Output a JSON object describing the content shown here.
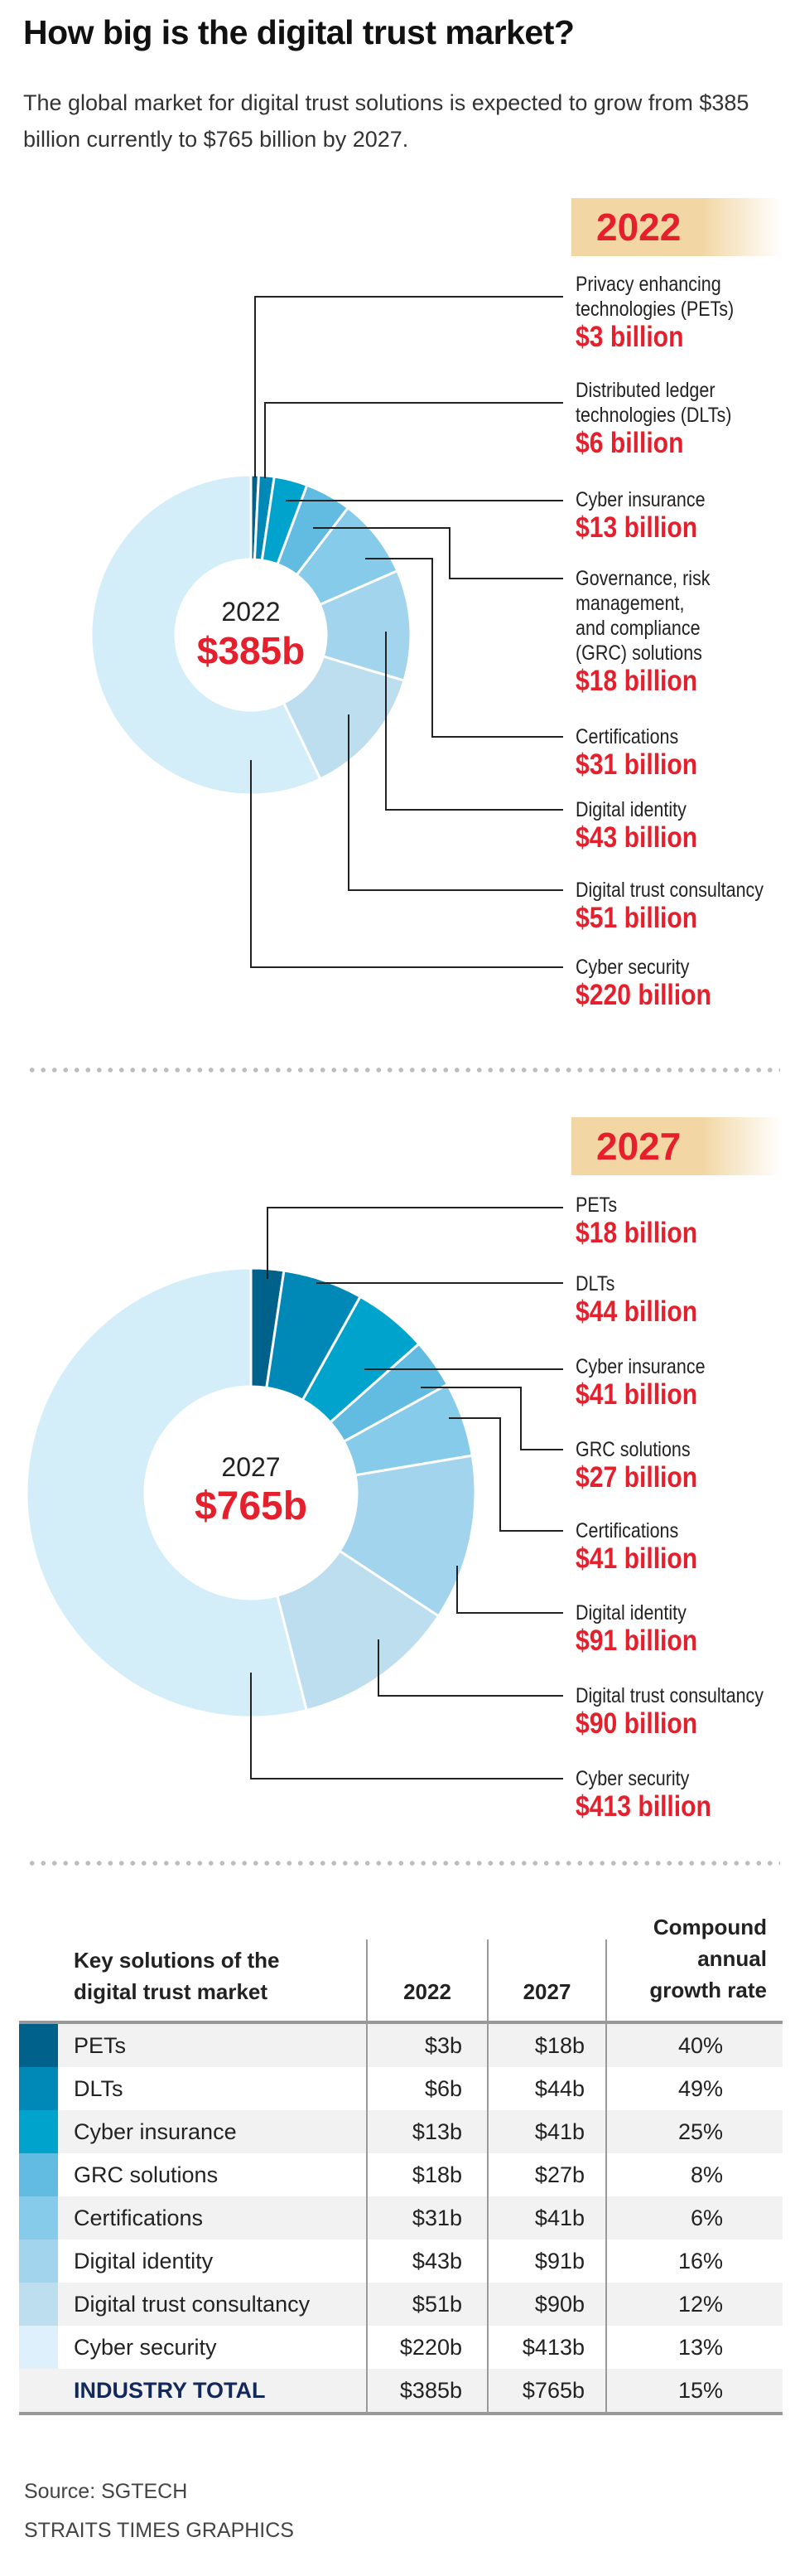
{
  "header": {
    "title": "How big is the digital trust market?",
    "subtitle": "The global market for digital trust solutions is expected to grow from $385 billion currently to $765 billion by 2027."
  },
  "colors": {
    "accent_red": "#e51f2b",
    "badge": "#f2d7a4",
    "total_label": "#13295b",
    "slices": [
      "#00628a",
      "#0088b7",
      "#00a3cc",
      "#62bbe0",
      "#86cbea",
      "#a3d4ee",
      "#bcdeee",
      "#d3edf9"
    ]
  },
  "chart_data": [
    {
      "type": "pie",
      "variant": "donut",
      "badge": "2022",
      "center_year": "2022",
      "center_total": "$385b",
      "categories": [
        "PETs",
        "DLTs",
        "Cyber insurance",
        "GRC solutions",
        "Certifications",
        "Digital identity",
        "Digital trust consultancy",
        "Cyber security"
      ],
      "values": [
        3,
        6,
        13,
        18,
        31,
        43,
        51,
        220
      ],
      "unit": "billion USD",
      "labels": [
        {
          "name": "Privacy enhancing\ntechnologies (PETs)",
          "value": "$3 billion"
        },
        {
          "name": "Distributed ledger\ntechnologies (DLTs)",
          "value": "$6 billion"
        },
        {
          "name": "Cyber insurance",
          "value": "$13 billion"
        },
        {
          "name": "Governance, risk\nmanagement,\nand compliance\n(GRC) solutions",
          "value": "$18 billion"
        },
        {
          "name": "Certifications",
          "value": "$31 billion"
        },
        {
          "name": "Digital identity",
          "value": "$43 billion"
        },
        {
          "name": "Digital trust consultancy",
          "value": "$51 billion"
        },
        {
          "name": "Cyber security",
          "value": "$220 billion"
        }
      ]
    },
    {
      "type": "pie",
      "variant": "donut",
      "badge": "2027",
      "center_year": "2027",
      "center_total": "$765b",
      "categories": [
        "PETs",
        "DLTs",
        "Cyber insurance",
        "GRC solutions",
        "Certifications",
        "Digital identity",
        "Digital trust consultancy",
        "Cyber security"
      ],
      "values": [
        18,
        44,
        41,
        27,
        41,
        91,
        90,
        413
      ],
      "unit": "billion USD",
      "labels": [
        {
          "name": "PETs",
          "value": "$18 billion"
        },
        {
          "name": "DLTs",
          "value": "$44 billion"
        },
        {
          "name": "Cyber insurance",
          "value": "$41 billion"
        },
        {
          "name": "GRC solutions",
          "value": "$27 billion"
        },
        {
          "name": "Certifications",
          "value": "$41 billion"
        },
        {
          "name": "Digital identity",
          "value": "$91 billion"
        },
        {
          "name": "Digital trust consultancy",
          "value": "$90 billion"
        },
        {
          "name": "Cyber security",
          "value": "$413 billion"
        }
      ]
    }
  ],
  "table": {
    "headers": {
      "solution": "Key solutions of the\ndigital trust market",
      "y2022": "2022",
      "y2027": "2027",
      "cagr": "Compound\nannual\ngrowth rate"
    },
    "rows": [
      {
        "name": "PETs",
        "v2022": "$3b",
        "v2027": "$18b",
        "cagr": "40%",
        "swatch": "#00628a"
      },
      {
        "name": "DLTs",
        "v2022": "$6b",
        "v2027": "$44b",
        "cagr": "49%",
        "swatch": "#0088b7"
      },
      {
        "name": "Cyber insurance",
        "v2022": "$13b",
        "v2027": "$41b",
        "cagr": "25%",
        "swatch": "#00a3cc"
      },
      {
        "name": "GRC solutions",
        "v2022": "$18b",
        "v2027": "$27b",
        "cagr": "8%",
        "swatch": "#62bbe0"
      },
      {
        "name": "Certifications",
        "v2022": "$31b",
        "v2027": "$41b",
        "cagr": "6%",
        "swatch": "#86cbea"
      },
      {
        "name": "Digital identity",
        "v2022": "$43b",
        "v2027": "$91b",
        "cagr": "16%",
        "swatch": "#a3d4ee"
      },
      {
        "name": "Digital trust consultancy",
        "v2022": "$51b",
        "v2027": "$90b",
        "cagr": "12%",
        "swatch": "#bcdeee"
      },
      {
        "name": "Cyber security",
        "v2022": "$220b",
        "v2027": "$413b",
        "cagr": "13%",
        "swatch": "#ddf0fb"
      }
    ],
    "total": {
      "name": "INDUSTRY TOTAL",
      "v2022": "$385b",
      "v2027": "$765b",
      "cagr": "15%"
    }
  },
  "footer": {
    "source": "Source: SGTECH",
    "credit": "STRAITS TIMES GRAPHICS"
  }
}
